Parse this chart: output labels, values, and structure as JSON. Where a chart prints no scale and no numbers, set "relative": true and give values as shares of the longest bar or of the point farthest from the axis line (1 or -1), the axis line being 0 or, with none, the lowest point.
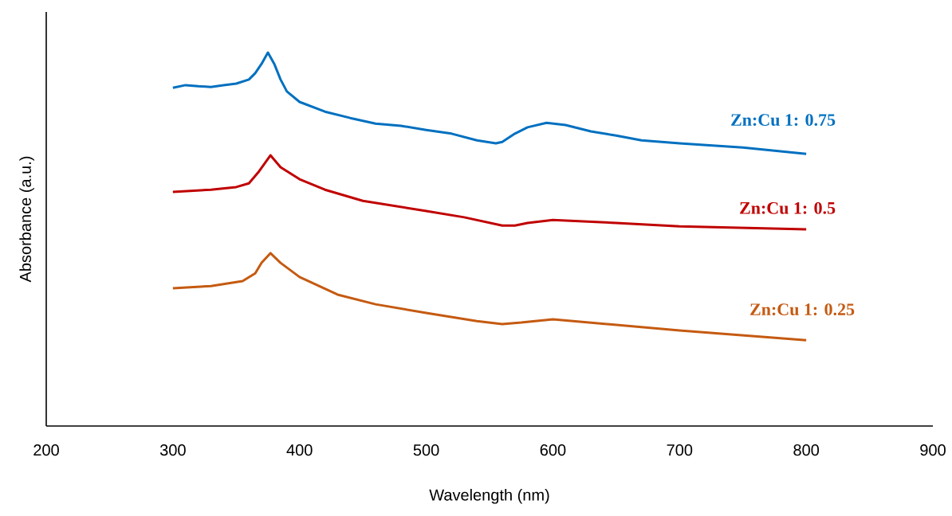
{
  "chart_data": {
    "type": "line",
    "relative": true,
    "xlabel": "Wavelength (nm)",
    "ylabel": "Absorbance (a.u.)",
    "xlim": [
      200,
      900
    ],
    "xticks": [
      200,
      300,
      400,
      500,
      600,
      700,
      800,
      900
    ],
    "series": [
      {
        "name": "Zn:Cu  1: 0.75",
        "color": "#0070c0",
        "x": [
          300,
          310,
          320,
          330,
          340,
          350,
          360,
          365,
          370,
          375,
          380,
          385,
          390,
          400,
          420,
          440,
          460,
          480,
          500,
          520,
          540,
          555,
          560,
          570,
          580,
          595,
          610,
          630,
          650,
          670,
          700,
          750,
          800
        ],
        "values": [
          0.906,
          0.913,
          0.91,
          0.908,
          0.913,
          0.917,
          0.928,
          0.945,
          0.97,
          1,
          0.97,
          0.928,
          0.896,
          0.868,
          0.842,
          0.825,
          0.81,
          0.804,
          0.793,
          0.783,
          0.765,
          0.757,
          0.761,
          0.783,
          0.8,
          0.812,
          0.806,
          0.789,
          0.778,
          0.765,
          0.757,
          0.746,
          0.729
        ]
      },
      {
        "name": "Zn:Cu  1: 0.5",
        "color": "#c00000",
        "x": [
          300,
          330,
          350,
          360,
          368,
          377,
          385,
          400,
          420,
          450,
          500,
          530,
          560,
          570,
          580,
          600,
          650,
          700,
          750,
          800
        ],
        "values": [
          0.627,
          0.633,
          0.64,
          0.65,
          0.682,
          0.725,
          0.693,
          0.661,
          0.633,
          0.603,
          0.576,
          0.559,
          0.537,
          0.537,
          0.544,
          0.552,
          0.544,
          0.535,
          0.531,
          0.527
        ]
      },
      {
        "name": "Zn:Cu  1: 0.25",
        "color": "#c55a11",
        "x": [
          300,
          330,
          355,
          365,
          370,
          377,
          385,
          400,
          430,
          460,
          500,
          540,
          560,
          575,
          600,
          650,
          700,
          750,
          800
        ],
        "values": [
          0.369,
          0.375,
          0.388,
          0.409,
          0.437,
          0.463,
          0.437,
          0.399,
          0.352,
          0.326,
          0.303,
          0.281,
          0.273,
          0.277,
          0.286,
          0.271,
          0.256,
          0.243,
          0.23
        ]
      }
    ]
  }
}
